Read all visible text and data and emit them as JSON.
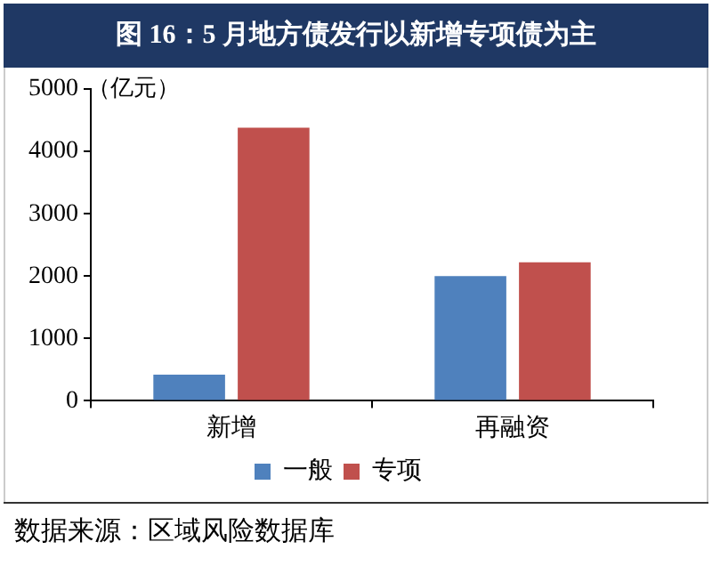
{
  "chart_data": {
    "type": "bar",
    "title": "图 16：5 月地方债发行以新增专项债为主",
    "ylabel": "（亿元）",
    "categories": [
      "新增",
      "再融资"
    ],
    "series": [
      {
        "name": "一般",
        "color": "#4f81bd",
        "values": [
          420,
          2000
        ]
      },
      {
        "name": "专项",
        "color": "#c0504d",
        "values": [
          4380,
          2220
        ]
      }
    ],
    "ylim": [
      0,
      5000
    ],
    "yticks": [
      0,
      1000,
      2000,
      3000,
      4000,
      5000
    ],
    "grid": false,
    "legend": "bottom",
    "annotations": [
      "数据来源：区域风险数据库"
    ]
  }
}
